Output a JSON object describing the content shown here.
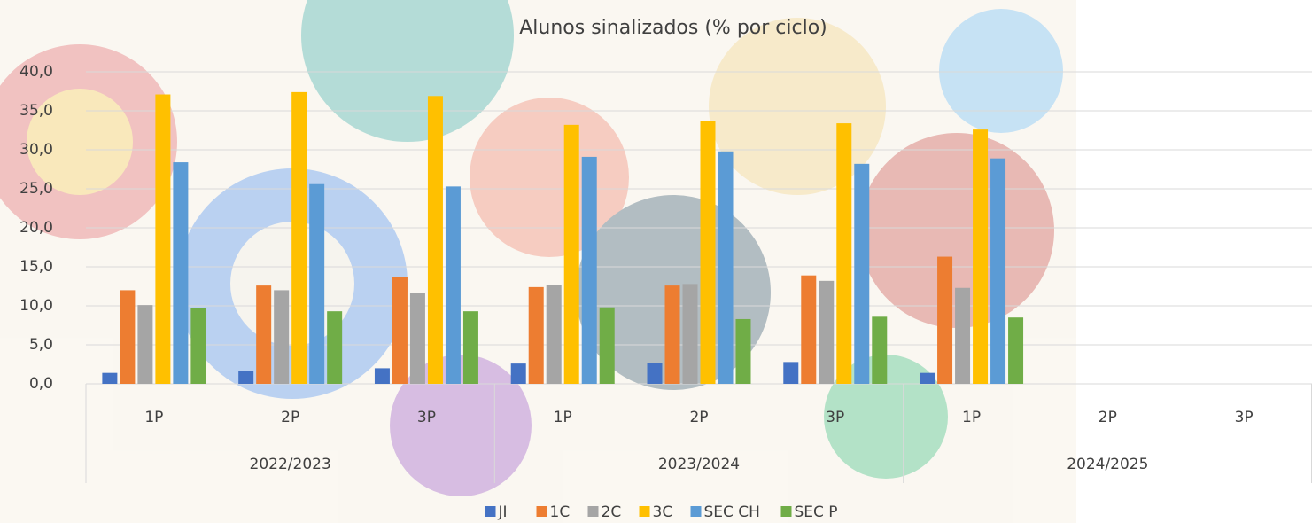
{
  "chart_data": {
    "type": "bar",
    "title": "Alunos sinalizados (% por ciclo)",
    "categories": [
      "1P",
      "2P",
      "3P",
      "1P",
      "2P",
      "3P",
      "1P",
      "2P",
      "3P"
    ],
    "category_groups": [
      "2022/2023",
      "2023/2024",
      "2024/2025"
    ],
    "series": [
      {
        "name": "JI",
        "color": "#4472c4",
        "values": [
          1.4,
          1.7,
          2.0,
          2.6,
          2.7,
          2.8,
          1.4,
          null,
          null
        ]
      },
      {
        "name": "1C",
        "color": "#ed7d31",
        "values": [
          12.0,
          12.6,
          13.7,
          12.4,
          12.6,
          13.9,
          16.3,
          null,
          null
        ]
      },
      {
        "name": "2C",
        "color": "#a5a5a5",
        "values": [
          10.1,
          12.0,
          11.6,
          12.7,
          12.8,
          13.2,
          12.3,
          null,
          null
        ]
      },
      {
        "name": "3C",
        "color": "#ffc000",
        "values": [
          37.1,
          37.4,
          36.9,
          33.2,
          33.7,
          33.4,
          32.6,
          null,
          null
        ]
      },
      {
        "name": "SEC CH",
        "color": "#5b9bd5",
        "values": [
          28.4,
          25.6,
          25.3,
          29.1,
          29.8,
          28.2,
          28.9,
          null,
          null
        ]
      },
      {
        "name": "SEC P",
        "color": "#70ad47",
        "values": [
          9.7,
          9.3,
          9.3,
          9.8,
          8.3,
          8.6,
          8.5,
          null,
          null
        ]
      }
    ],
    "ylim": [
      0,
      40
    ],
    "yticks": [
      {
        "value": 0,
        "label": "0,0"
      },
      {
        "value": 5,
        "label": "5,0"
      },
      {
        "value": 10,
        "label": "10,0"
      },
      {
        "value": 15,
        "label": "15,0"
      },
      {
        "value": 20,
        "label": "20,0"
      },
      {
        "value": 25,
        "label": "25,0"
      },
      {
        "value": 30,
        "label": "30,0"
      },
      {
        "value": 35,
        "label": "35,0"
      },
      {
        "value": 40,
        "label": "40,0"
      }
    ],
    "grid": true,
    "legend": "bottom"
  }
}
